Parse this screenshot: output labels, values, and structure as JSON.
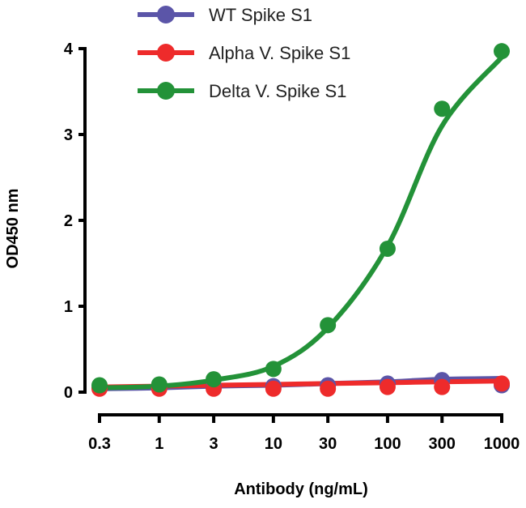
{
  "chart_data": {
    "type": "line",
    "title": "",
    "xlabel": "Antibody (ng/mL)",
    "ylabel": "OD450 nm",
    "xscale": "log",
    "xlim": [
      0.3,
      1000
    ],
    "ylim": [
      0,
      4
    ],
    "x": [
      0.3,
      1,
      3,
      10,
      30,
      100,
      300,
      1000
    ],
    "x_tick_labels": [
      "0.3",
      "1",
      "3",
      "10",
      "30",
      "100",
      "300",
      "1000"
    ],
    "y_ticks": [
      0,
      1,
      2,
      3,
      4
    ],
    "y_tick_labels": [
      "0",
      "1",
      "2",
      "3",
      "4"
    ],
    "grid": false,
    "legend_position": "top-left",
    "series": [
      {
        "name": "WT Spike S1",
        "color": "#5b55a8",
        "values": [
          0.05,
          0.05,
          0.06,
          0.07,
          0.08,
          0.1,
          0.14,
          0.08
        ],
        "fit": [
          0.04,
          0.05,
          0.07,
          0.08,
          0.1,
          0.12,
          0.15,
          0.16
        ]
      },
      {
        "name": "Alpha V. Spike S1",
        "color": "#ee2b2b",
        "values": [
          0.04,
          0.04,
          0.04,
          0.04,
          0.04,
          0.06,
          0.06,
          0.1
        ],
        "fit": [
          0.06,
          0.07,
          0.08,
          0.09,
          0.1,
          0.11,
          0.12,
          0.13
        ]
      },
      {
        "name": "Delta V. Spike S1",
        "color": "#239238",
        "values": [
          0.08,
          0.09,
          0.15,
          0.27,
          0.78,
          1.67,
          3.3,
          3.97
        ],
        "fit": [
          0.05,
          0.07,
          0.14,
          0.3,
          0.75,
          1.7,
          3.1,
          3.9
        ]
      }
    ]
  }
}
